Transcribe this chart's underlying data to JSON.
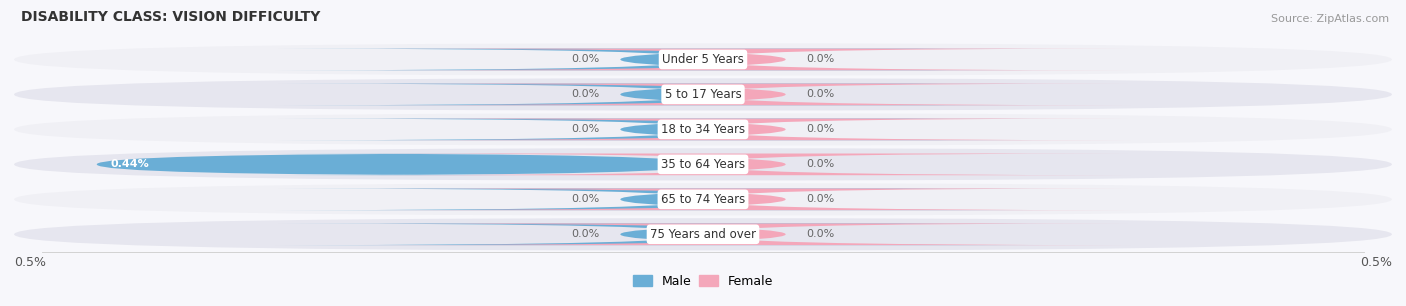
{
  "title": "DISABILITY CLASS: VISION DIFFICULTY",
  "source": "Source: ZipAtlas.com",
  "categories": [
    "Under 5 Years",
    "5 to 17 Years",
    "18 to 34 Years",
    "35 to 64 Years",
    "65 to 74 Years",
    "75 Years and over"
  ],
  "male_values": [
    0.0,
    0.0,
    0.0,
    0.44,
    0.0,
    0.0
  ],
  "female_values": [
    0.0,
    0.0,
    0.0,
    0.0,
    0.0,
    0.0
  ],
  "male_color": "#6aaed6",
  "female_color": "#f4a7ba",
  "row_bg_light": "#f0f0f5",
  "row_bg_dark": "#e6e6ef",
  "fig_bg": "#f7f7fb",
  "xlim": 0.5,
  "stub_size": 0.06,
  "bar_height": 0.62,
  "title_fontsize": 10,
  "label_fontsize": 8.5,
  "source_fontsize": 8,
  "legend_labels": [
    "Male",
    "Female"
  ]
}
